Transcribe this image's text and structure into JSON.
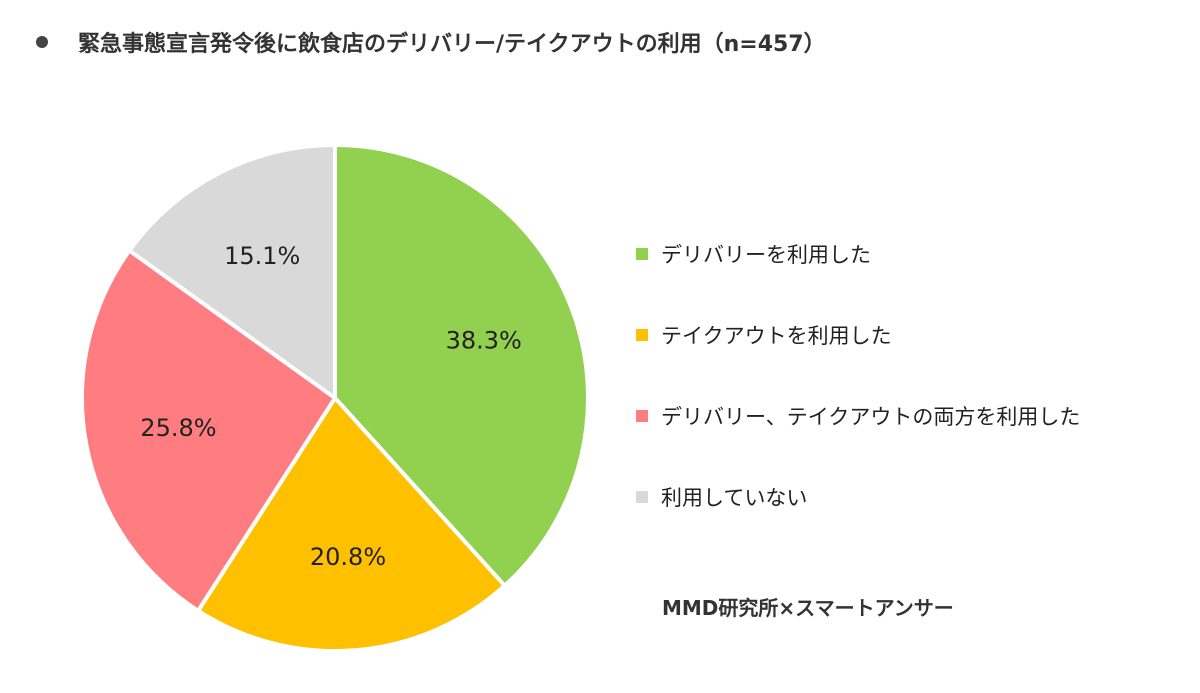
{
  "chart_data": {
    "type": "pie",
    "title": "緊急事態宣言発令後に飲食店のデリバリー/テイクアウトの利用（n=457）",
    "sample_size": 457,
    "slices": [
      {
        "label": "デリバリーを利用した",
        "value": 38.3,
        "display": "38.3%",
        "color": "#92d050"
      },
      {
        "label": "テイクアウトを利用した",
        "value": 20.8,
        "display": "20.8%",
        "color": "#ffc000"
      },
      {
        "label": "デリバリー、テイクアウトの両方を利用した",
        "value": 25.8,
        "display": "25.8%",
        "color": "#ff7c80"
      },
      {
        "label": "利用していない",
        "value": 15.1,
        "display": "15.1%",
        "color": "#d9d9d9"
      }
    ],
    "legend_position": "right",
    "start": "12 o'clock",
    "direction": "clockwise"
  },
  "source": "MMD研究所×スマートアンサー"
}
